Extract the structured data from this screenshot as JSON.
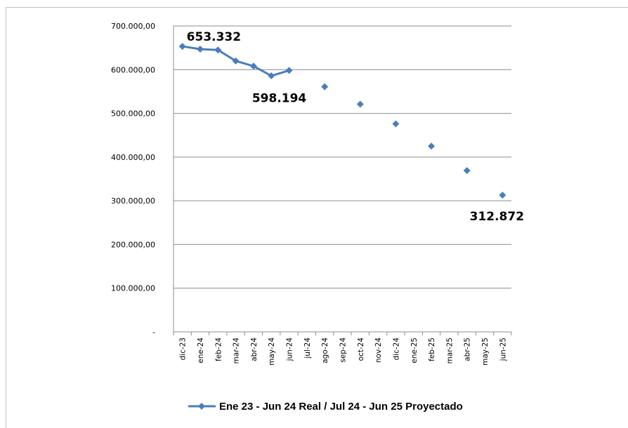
{
  "chart_data": {
    "type": "line",
    "categories": [
      "dic-23",
      "ene-24",
      "feb-24",
      "mar-24",
      "abr-24",
      "may-24",
      "jun-24",
      "jul-24",
      "ago-24",
      "sep-24",
      "oct-24",
      "nov-24",
      "dic-24",
      "ene-25",
      "feb-25",
      "mar-25",
      "abr-25",
      "may-25",
      "jun-25"
    ],
    "series": [
      {
        "name": "Ene 23 - Jun 24 Real / Jul 24 - Jun 25 Proyectado",
        "color": "#4a7ebb",
        "values": [
          653332,
          647000,
          645000,
          620000,
          608000,
          586000,
          598194,
          null,
          561000,
          null,
          521000,
          null,
          476000,
          null,
          425000,
          null,
          369000,
          null,
          312872
        ]
      }
    ],
    "yticks": [
      0,
      100000,
      200000,
      300000,
      400000,
      500000,
      600000,
      700000
    ],
    "ytick_labels": [
      "-",
      "100.000,00",
      "200.000,00",
      "300.000,00",
      "400.000,00",
      "500.000,00",
      "600.000,00",
      "700.000,00"
    ],
    "ylim": [
      0,
      700000
    ],
    "grid": true,
    "legend_position": "bottom",
    "data_labels": [
      {
        "index": 0,
        "text": "653.332"
      },
      {
        "index": 6,
        "text": "598.194"
      },
      {
        "index": 18,
        "text": "312.872"
      }
    ],
    "title": "",
    "xlabel": "",
    "ylabel": ""
  }
}
